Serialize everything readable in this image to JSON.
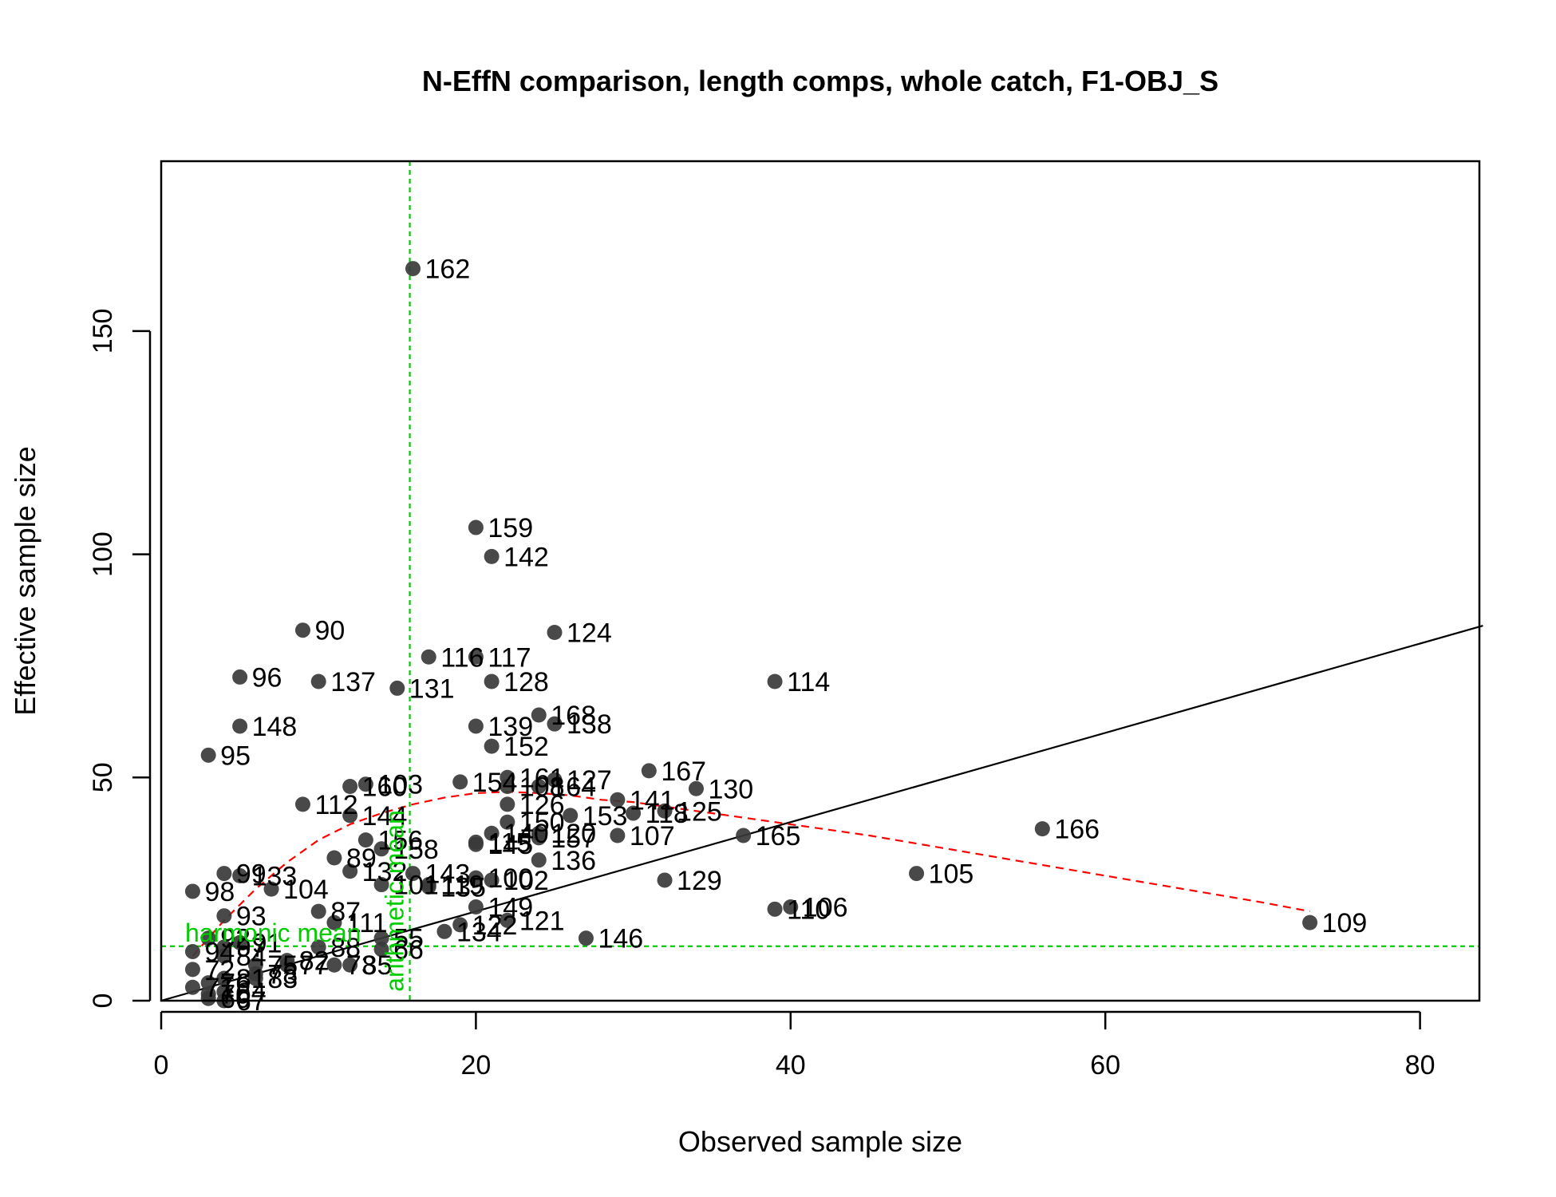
{
  "chart_data": {
    "type": "scatter",
    "title": "N-EffN comparison, length comps, whole catch, F1-OBJ_S",
    "xlabel": "Observed sample size",
    "ylabel": "Effective sample size",
    "xlim": [
      0,
      84
    ],
    "ylim": [
      0,
      190
    ],
    "x_ticks": [
      0,
      20,
      40,
      60,
      80
    ],
    "y_ticks": [
      0,
      50,
      100,
      150
    ],
    "x_tick_labels": [
      "0",
      "20",
      "40",
      "60",
      "80"
    ],
    "y_tick_labels": [
      "0",
      "50",
      "100",
      "150"
    ],
    "grid": false,
    "point_color": "#3a3a3a",
    "points": [
      {
        "label": "162",
        "x": 16,
        "y": 164
      },
      {
        "label": "159",
        "x": 20,
        "y": 106
      },
      {
        "label": "142",
        "x": 21,
        "y": 99.5
      },
      {
        "label": "90",
        "x": 9,
        "y": 83
      },
      {
        "label": "124",
        "x": 25,
        "y": 82.5
      },
      {
        "label": "116",
        "x": 17,
        "y": 77
      },
      {
        "label": "117",
        "x": 20,
        "y": 77
      },
      {
        "label": "96",
        "x": 5,
        "y": 72.5
      },
      {
        "label": "137",
        "x": 10,
        "y": 71.5
      },
      {
        "label": "131",
        "x": 15,
        "y": 70
      },
      {
        "label": "128",
        "x": 21,
        "y": 71.5
      },
      {
        "label": "114",
        "x": 39,
        "y": 71.5
      },
      {
        "label": "168",
        "x": 24,
        "y": 64
      },
      {
        "label": "138",
        "x": 25,
        "y": 62
      },
      {
        "label": "148",
        "x": 5,
        "y": 61.5
      },
      {
        "label": "139",
        "x": 20,
        "y": 61.5
      },
      {
        "label": "152",
        "x": 21,
        "y": 57
      },
      {
        "label": "95",
        "x": 3,
        "y": 55
      },
      {
        "label": "167",
        "x": 31,
        "y": 51.5
      },
      {
        "label": "161",
        "x": 22,
        "y": 50
      },
      {
        "label": "127",
        "x": 25,
        "y": 49.5
      },
      {
        "label": "154",
        "x": 19,
        "y": 49
      },
      {
        "label": "108",
        "x": 22,
        "y": 48
      },
      {
        "label": "164",
        "x": 24,
        "y": 48
      },
      {
        "label": "160",
        "x": 12,
        "y": 48
      },
      {
        "label": "103",
        "x": 13,
        "y": 48.5
      },
      {
        "label": "130",
        "x": 34,
        "y": 47.5
      },
      {
        "label": "141",
        "x": 29,
        "y": 45
      },
      {
        "label": "112",
        "x": 9,
        "y": 44
      },
      {
        "label": "126",
        "x": 22,
        "y": 44
      },
      {
        "label": "118",
        "x": 30,
        "y": 42
      },
      {
        "label": "125",
        "x": 32,
        "y": 42.5
      },
      {
        "label": "153",
        "x": 26,
        "y": 41.5
      },
      {
        "label": "144",
        "x": 12,
        "y": 41.5
      },
      {
        "label": "150",
        "x": 22,
        "y": 40
      },
      {
        "label": "166",
        "x": 56,
        "y": 38.5
      },
      {
        "label": "140",
        "x": 21,
        "y": 37.5
      },
      {
        "label": "120",
        "x": 24,
        "y": 37.5
      },
      {
        "label": "107",
        "x": 29,
        "y": 37
      },
      {
        "label": "157",
        "x": 24,
        "y": 36.5
      },
      {
        "label": "165",
        "x": 37,
        "y": 37
      },
      {
        "label": "156",
        "x": 13,
        "y": 36
      },
      {
        "label": "115",
        "x": 20,
        "y": 35.5
      },
      {
        "label": "145",
        "x": 20,
        "y": 35
      },
      {
        "label": "158",
        "x": 14,
        "y": 34
      },
      {
        "label": "89",
        "x": 11,
        "y": 32
      },
      {
        "label": "136",
        "x": 24,
        "y": 31.5
      },
      {
        "label": "132",
        "x": 12,
        "y": 29
      },
      {
        "label": "143",
        "x": 16,
        "y": 28.5
      },
      {
        "label": "105",
        "x": 48,
        "y": 28.5
      },
      {
        "label": "99",
        "x": 4,
        "y": 28.5
      },
      {
        "label": "133",
        "x": 5,
        "y": 28
      },
      {
        "label": "100",
        "x": 20,
        "y": 27.5
      },
      {
        "label": "102",
        "x": 21,
        "y": 27
      },
      {
        "label": "101",
        "x": 14,
        "y": 26
      },
      {
        "label": "119",
        "x": 17,
        "y": 26
      },
      {
        "label": "129",
        "x": 32,
        "y": 27
      },
      {
        "label": "104",
        "x": 7,
        "y": 25
      },
      {
        "label": "135",
        "x": 17,
        "y": 25.5
      },
      {
        "label": "98",
        "x": 2,
        "y": 24.5
      },
      {
        "label": "149",
        "x": 20,
        "y": 21
      },
      {
        "label": "110",
        "x": 39,
        "y": 20.5
      },
      {
        "label": "106",
        "x": 40,
        "y": 21
      },
      {
        "label": "87",
        "x": 10,
        "y": 20
      },
      {
        "label": "93",
        "x": 4,
        "y": 19
      },
      {
        "label": "121",
        "x": 22,
        "y": 18
      },
      {
        "label": "109",
        "x": 73,
        "y": 17.5
      },
      {
        "label": "111",
        "x": 11,
        "y": 17.5
      },
      {
        "label": "122",
        "x": 19,
        "y": 17
      },
      {
        "label": "134",
        "x": 18,
        "y": 15.5
      },
      {
        "label": "92",
        "x": 3,
        "y": 14
      },
      {
        "label": "91",
        "x": 5,
        "y": 13
      },
      {
        "label": "146",
        "x": 27,
        "y": 14
      },
      {
        "label": "88",
        "x": 10,
        "y": 12
      },
      {
        "label": "97",
        "x": 4,
        "y": 12
      },
      {
        "label": "55",
        "x": 14,
        "y": 14
      },
      {
        "label": "66",
        "x": 14,
        "y": 11.5
      },
      {
        "label": "94",
        "x": 2,
        "y": 11
      },
      {
        "label": "84",
        "x": 4,
        "y": 10
      },
      {
        "label": "82",
        "x": 8,
        "y": 9
      },
      {
        "label": "85",
        "x": 12,
        "y": 8
      },
      {
        "label": "73",
        "x": 11,
        "y": 8
      },
      {
        "label": "75",
        "x": 6,
        "y": 8
      },
      {
        "label": "77",
        "x": 8,
        "y": 8
      },
      {
        "label": "72",
        "x": 2,
        "y": 7
      },
      {
        "label": "78",
        "x": 6,
        "y": 6
      },
      {
        "label": "81",
        "x": 4,
        "y": 5
      },
      {
        "label": "83",
        "x": 6,
        "y": 5
      },
      {
        "label": "76",
        "x": 3,
        "y": 4
      },
      {
        "label": "71",
        "x": 2,
        "y": 3
      },
      {
        "label": "64",
        "x": 4,
        "y": 2
      },
      {
        "label": "70",
        "x": 3,
        "y": 1.5
      },
      {
        "label": "60",
        "x": 3,
        "y": 0.5
      },
      {
        "label": "67",
        "x": 4,
        "y": 0
      }
    ],
    "reference_line": {
      "slope": 1,
      "intercept": 0,
      "color": "#000000"
    },
    "smoother": {
      "color": "#ff0000",
      "x": [
        2,
        4,
        6,
        8,
        10,
        12,
        14,
        16,
        18,
        20,
        22,
        24,
        26,
        28,
        30,
        32,
        34,
        36,
        40,
        45,
        50,
        55,
        60,
        65,
        70,
        73
      ],
      "y": [
        10,
        18,
        25,
        31,
        36,
        39.5,
        42,
        44,
        45.5,
        46.5,
        46.8,
        46.5,
        46,
        45,
        44.5,
        43.5,
        42.5,
        41.5,
        39.5,
        37,
        34,
        31,
        28,
        25,
        22,
        20
      ]
    },
    "harmonic_mean": {
      "label": "harmonic mean",
      "value": 12.2,
      "color": "#00cc00"
    },
    "arithmetic_mean": {
      "label": "arithmetic mean",
      "value": 15.8,
      "color": "#00cc00"
    }
  }
}
